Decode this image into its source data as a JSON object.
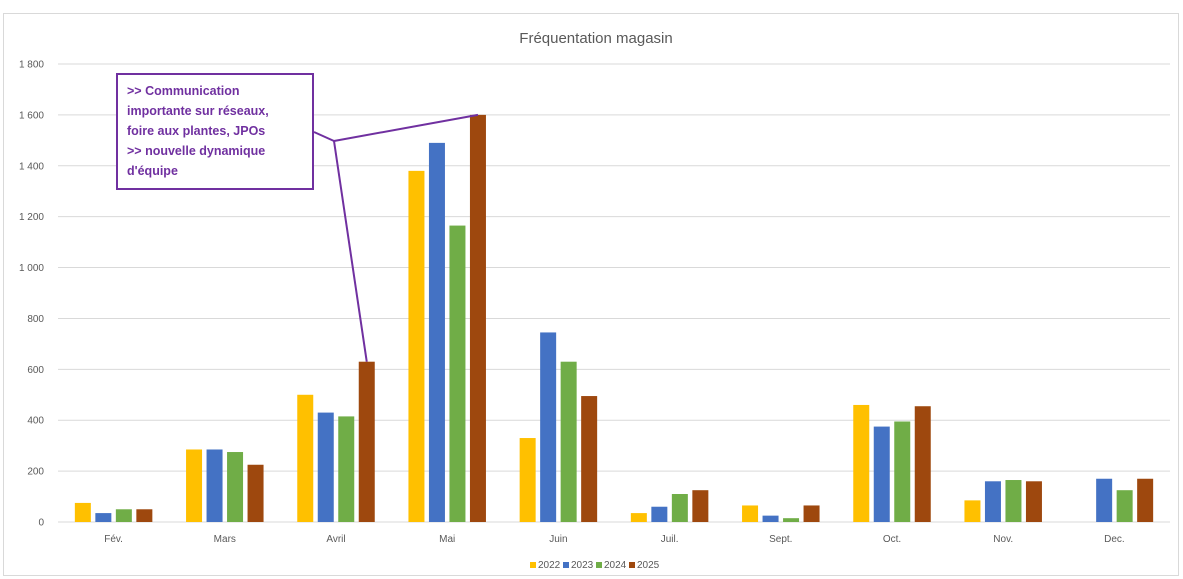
{
  "chart_data": {
    "type": "bar",
    "title": "Fréquentation magasin",
    "categories": [
      "Fév.",
      "Mars",
      "Avril",
      "Mai",
      "Juin",
      "Juil.",
      "Sept.",
      "Oct.",
      "Nov.",
      "Dec."
    ],
    "series": [
      {
        "name": "2022",
        "color": "#ffc000",
        "values": [
          75,
          285,
          500,
          1380,
          330,
          35,
          65,
          460,
          85,
          null
        ]
      },
      {
        "name": "2023",
        "color": "#4472c4",
        "values": [
          35,
          285,
          430,
          1490,
          745,
          60,
          25,
          375,
          160,
          170
        ]
      },
      {
        "name": "2024",
        "color": "#70ad47",
        "values": [
          50,
          275,
          415,
          1165,
          630,
          110,
          15,
          395,
          165,
          125
        ]
      },
      {
        "name": "2025",
        "color": "#9e480e",
        "values": [
          50,
          225,
          630,
          1600,
          495,
          125,
          65,
          455,
          160,
          170
        ]
      }
    ],
    "ylim": [
      0,
      1800
    ],
    "yticks": [
      "0",
      "200",
      "400",
      "600",
      "800",
      "1 000",
      "1 200",
      "1 400",
      "1 600",
      "1 800"
    ],
    "ytick_values": [
      0,
      200,
      400,
      600,
      800,
      1000,
      1200,
      1400,
      1600,
      1800
    ],
    "grid": true,
    "legend_position": "bottom",
    "xlabel": "",
    "ylabel": "",
    "annotation": {
      "lines": [
        ">> Communication",
        "importante sur réseaux,",
        "foire aux plantes, JPOs",
        ">> nouvelle dynamique",
        "d'équipe"
      ],
      "color": "#7030a0",
      "points_to": [
        {
          "category": "Avril",
          "series": "2025"
        },
        {
          "category": "Mai",
          "series": "2025"
        }
      ]
    }
  }
}
